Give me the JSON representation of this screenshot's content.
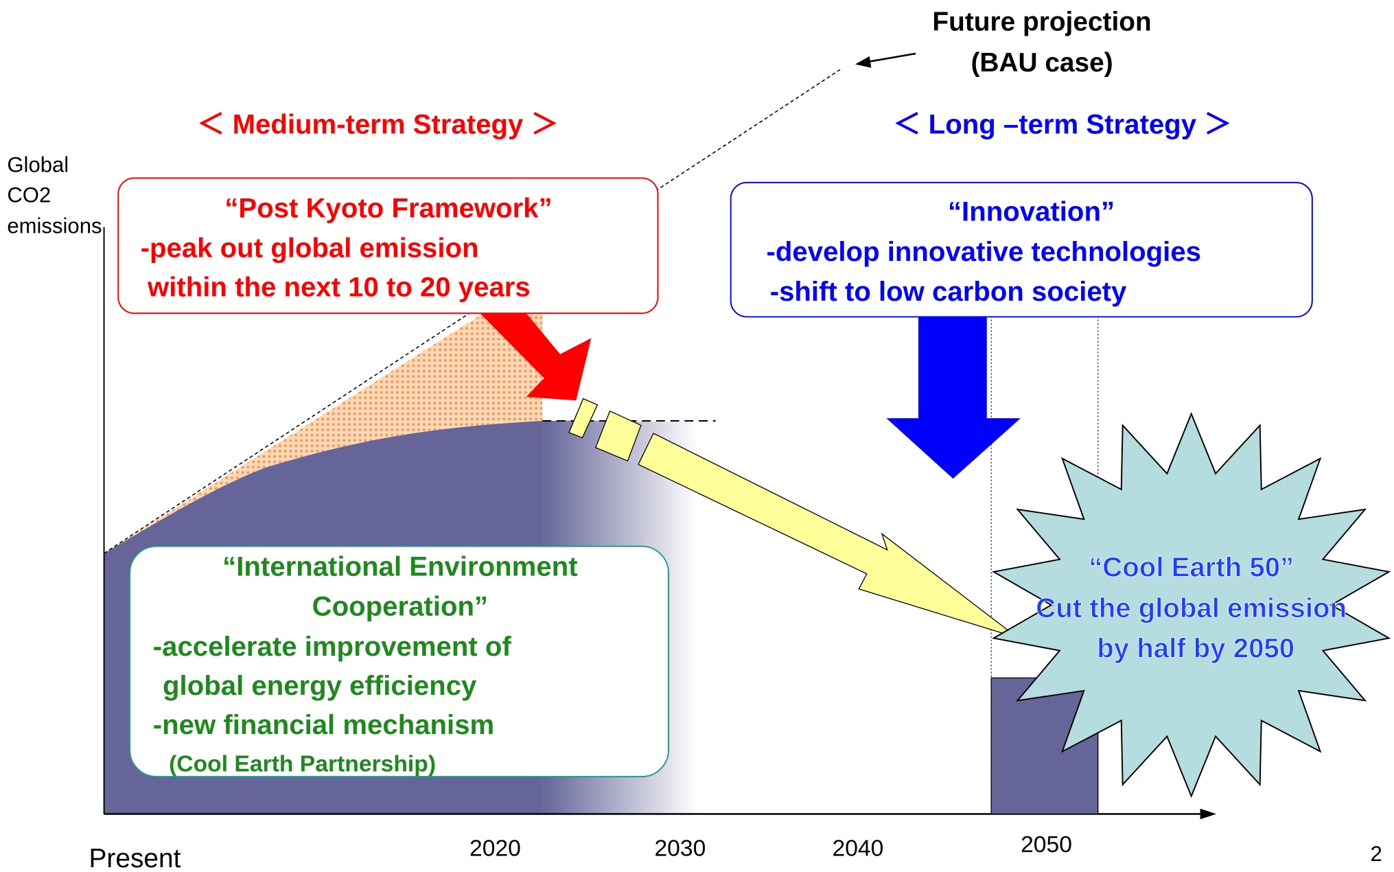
{
  "projection": {
    "line1": "Future projection",
    "line2": "(BAU case)"
  },
  "medium_term": "＜ Medium-term Strategy ＞",
  "long_term": "＜ Long –term Strategy ＞",
  "y_axis_label": [
    "Global",
    "CO2",
    "emissions"
  ],
  "post_kyoto": {
    "title": "“Post Kyoto Framework”",
    "lines": [
      "-peak out global emission",
      "within the next 10 to 20 years"
    ]
  },
  "innovation": {
    "title": "“Innovation”",
    "lines": [
      "-develop innovative technologies",
      "-shift to low carbon society"
    ]
  },
  "cooperation": {
    "title": [
      "“International Environment",
      "Cooperation”"
    ],
    "lines": [
      "-accelerate improvement of",
      "global energy efficiency",
      "-new financial mechanism",
      "(Cool Earth Partnership)"
    ]
  },
  "cool_earth": {
    "title": "“Cool Earth 50”",
    "lines": [
      "Cut  the global emission",
      "by half by 2050"
    ]
  },
  "x_labels": [
    "Present",
    "2020",
    "2030",
    "2040",
    "2050"
  ],
  "page_number": "2"
}
